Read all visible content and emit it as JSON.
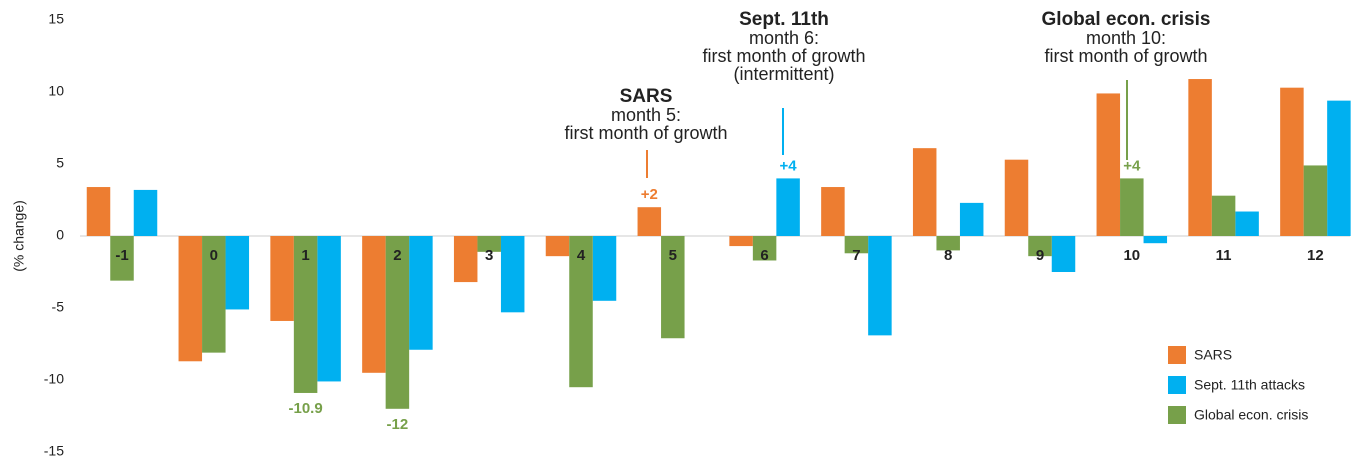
{
  "chart_data": {
    "type": "bar",
    "y_label": "(% change)",
    "categories": [
      "-1",
      "0",
      "1",
      "2",
      "3",
      "4",
      "5",
      "6",
      "7",
      "8",
      "9",
      "10",
      "11",
      "12"
    ],
    "series": [
      {
        "name": "SARS",
        "color": "#ed7d31",
        "values": [
          3.4,
          -8.7,
          -5.9,
          -9.5,
          -3.2,
          -1.4,
          2,
          -0.7,
          3.4,
          6.1,
          5.3,
          9.9,
          10.9,
          10.3
        ],
        "value_labels": [
          null,
          null,
          null,
          null,
          null,
          null,
          "+2",
          null,
          null,
          null,
          null,
          null,
          null,
          null
        ]
      },
      {
        "name": "Sept. 11th attacks",
        "color": "#00b0f0",
        "values": [
          3.2,
          -5.1,
          -10.1,
          -7.9,
          -5.3,
          -4.5,
          null,
          4,
          -6.9,
          2.3,
          -2.5,
          -0.5,
          1.7,
          9.4
        ],
        "value_labels": [
          null,
          null,
          null,
          null,
          null,
          null,
          null,
          "+4",
          null,
          null,
          null,
          null,
          null,
          null
        ]
      },
      {
        "name": "Global econ. crisis",
        "color": "#77a04a",
        "values": [
          -3.1,
          -8.1,
          -10.9,
          -12,
          -1.1,
          -10.5,
          -7.1,
          -1.7,
          -1.2,
          -1.0,
          -1.4,
          4,
          2.8,
          4.9
        ],
        "value_labels": [
          null,
          null,
          "-10.9",
          "-12",
          null,
          null,
          null,
          null,
          null,
          null,
          null,
          "+4",
          null,
          null
        ]
      }
    ],
    "annotations": [
      {
        "title": "SARS",
        "text": [
          "month 5:",
          "first month of growth"
        ]
      },
      {
        "title": "Sept. 11th",
        "text": [
          "month 6:",
          "first month of growth",
          "(intermittent)"
        ]
      },
      {
        "title": "Global econ. crisis",
        "text": [
          "month 10:",
          "first month of growth"
        ]
      }
    ],
    "ylim": [
      -15,
      15
    ],
    "yticks": [
      -15,
      -10,
      -5,
      0,
      5,
      10,
      15
    ],
    "grid": false,
    "legend": "lower right"
  }
}
